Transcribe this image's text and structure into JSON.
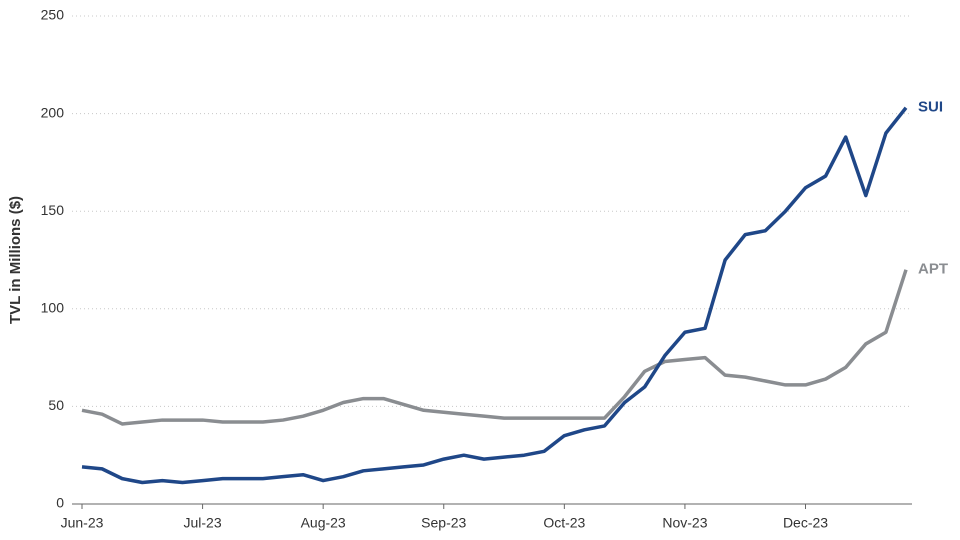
{
  "chart_data": {
    "type": "line",
    "y_label": "TVL in Millions ($)",
    "categories": [
      "Jun-23",
      null,
      null,
      null,
      null,
      null,
      "Jul-23",
      null,
      null,
      null,
      null,
      null,
      "Aug-23",
      null,
      null,
      null,
      null,
      null,
      "Sep-23",
      null,
      null,
      null,
      null,
      null,
      "Oct-23",
      null,
      null,
      null,
      null,
      null,
      "Nov-23",
      null,
      null,
      null,
      null,
      null,
      "Dec-23",
      null,
      null,
      null,
      null,
      null
    ],
    "series": [
      {
        "name": "SUI",
        "color": "#1f4788",
        "values": [
          19,
          18,
          13,
          11,
          12,
          11,
          12,
          13,
          13,
          13,
          14,
          15,
          12,
          14,
          17,
          18,
          19,
          20,
          23,
          25,
          23,
          24,
          25,
          27,
          35,
          38,
          40,
          52,
          60,
          76,
          88,
          90,
          125,
          138,
          140,
          150,
          162,
          168,
          188,
          158,
          190,
          203
        ]
      },
      {
        "name": "APT",
        "color": "#8a8d91",
        "values": [
          48,
          46,
          41,
          42,
          43,
          43,
          43,
          42,
          42,
          42,
          43,
          45,
          48,
          52,
          54,
          54,
          51,
          48,
          47,
          46,
          45,
          44,
          44,
          44,
          44,
          44,
          44,
          55,
          68,
          73,
          74,
          75,
          66,
          65,
          63,
          61,
          61,
          64,
          70,
          82,
          88,
          120
        ]
      }
    ],
    "ylim": [
      0,
      250
    ],
    "yticks": [
      0,
      50,
      100,
      150,
      200,
      250
    ],
    "grid": true
  }
}
